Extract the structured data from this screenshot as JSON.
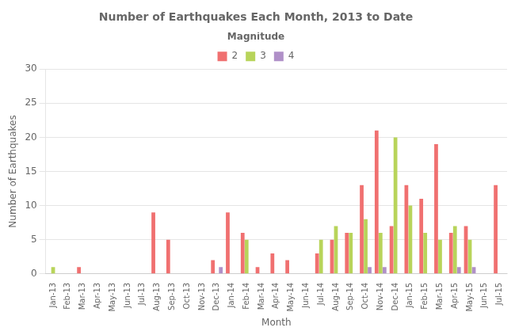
{
  "chart_data": {
    "type": "bar",
    "title": "Number of Earthquakes Each Month, 2013 to Date",
    "xlabel": "Month",
    "ylabel": "Number of Earthquakes",
    "legend_title": "Magnitude",
    "categories": [
      "Jan-13",
      "Feb-13",
      "Mar-13",
      "Apr-13",
      "May-13",
      "Jun-13",
      "Jul-13",
      "Aug-13",
      "Sep-13",
      "Oct-13",
      "Nov-13",
      "Dec-13",
      "Jan-14",
      "Feb-14",
      "Mar-14",
      "Apr-14",
      "May-14",
      "Jun-14",
      "Jul-14",
      "Aug-14",
      "Sep-14",
      "Oct-14",
      "Nov-14",
      "Dec-14",
      "Jan-15",
      "Feb-15",
      "Mar-15",
      "Apr-15",
      "May-15",
      "Jun-15",
      "Jul-15"
    ],
    "series": [
      {
        "name": "2",
        "color": "#f07070",
        "values": [
          0,
          0,
          1,
          0,
          0,
          0,
          0,
          9,
          5,
          0,
          0,
          2,
          9,
          6,
          1,
          3,
          2,
          0,
          3,
          5,
          6,
          13,
          21,
          7,
          13,
          11,
          19,
          6,
          7,
          0,
          13
        ]
      },
      {
        "name": "3",
        "color": "#b8d45a",
        "values": [
          1,
          0,
          0,
          0,
          0,
          0,
          0,
          0,
          0,
          0,
          0,
          0,
          0,
          5,
          0,
          0,
          0,
          0,
          5,
          7,
          6,
          8,
          6,
          20,
          10,
          6,
          5,
          7,
          5,
          0,
          0
        ]
      },
      {
        "name": "4",
        "color": "#b090c8",
        "values": [
          0,
          0,
          0,
          0,
          0,
          0,
          0,
          0,
          0,
          0,
          0,
          1,
          0,
          0,
          0,
          0,
          0,
          0,
          0,
          0,
          0,
          1,
          1,
          0,
          0,
          0,
          0,
          1,
          1,
          0,
          0
        ]
      }
    ],
    "ylim": [
      0,
      30
    ],
    "yticks": [
      0,
      5,
      10,
      15,
      20,
      25,
      30
    ],
    "grid": true,
    "legend": "top"
  }
}
